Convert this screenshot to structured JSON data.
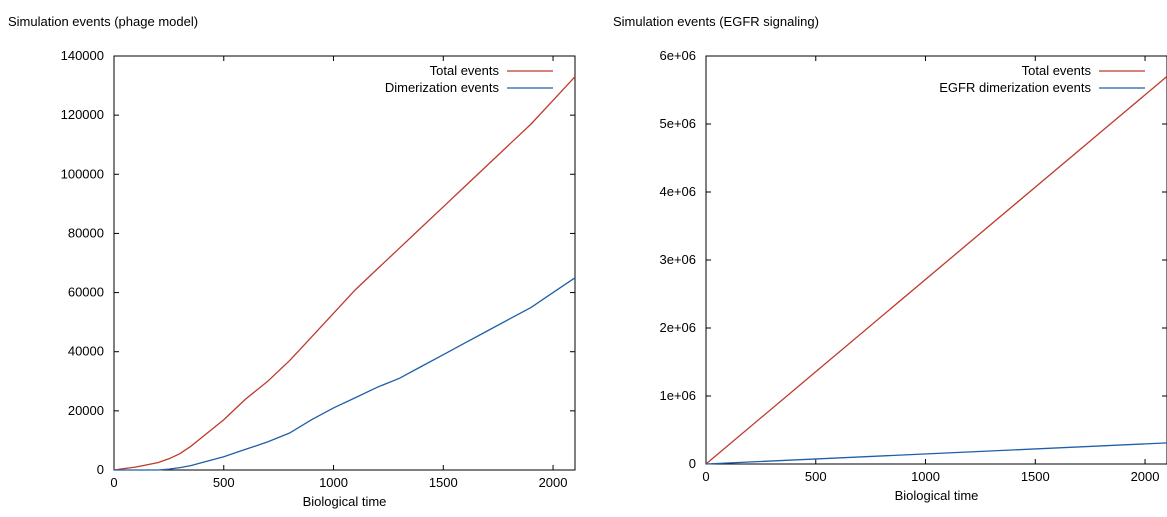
{
  "chart_data": [
    {
      "type": "line",
      "title": "Simulation events (phage model)",
      "xlabel": "Biological time",
      "ylabel": "",
      "xlim": [
        0,
        2100
      ],
      "ylim": [
        0,
        140000
      ],
      "xticks": [
        0,
        500,
        1000,
        1500,
        2000
      ],
      "yticks": [
        0,
        20000,
        40000,
        60000,
        80000,
        100000,
        120000,
        140000
      ],
      "xtick_labels": [
        "0",
        "500",
        "1000",
        "1500",
        "2000"
      ],
      "ytick_labels": [
        "0",
        "20000",
        "40000",
        "60000",
        "80000",
        "100000",
        "120000",
        "140000"
      ],
      "legend_position": "top-right",
      "series": [
        {
          "name": "Total events",
          "color": "#c0392b",
          "x": [
            0,
            100,
            200,
            250,
            300,
            350,
            400,
            450,
            500,
            550,
            600,
            700,
            800,
            850,
            900,
            1000,
            1100,
            1200,
            1300,
            1400,
            1500,
            1600,
            1700,
            1800,
            1900,
            2000,
            2100
          ],
          "y": [
            0,
            1000,
            2500,
            3800,
            5500,
            8000,
            11000,
            14000,
            17000,
            20500,
            24000,
            30000,
            37000,
            41000,
            45000,
            53000,
            61000,
            68000,
            75000,
            82000,
            89000,
            96000,
            103000,
            110000,
            117000,
            125000,
            133000
          ]
        },
        {
          "name": "Dimerization events",
          "color": "#1f5fa8",
          "x": [
            0,
            100,
            200,
            250,
            300,
            350,
            400,
            500,
            600,
            700,
            800,
            900,
            1000,
            1100,
            1200,
            1300,
            1400,
            1500,
            1600,
            1700,
            1800,
            1900,
            2000,
            2100
          ],
          "y": [
            0,
            0,
            0,
            300,
            800,
            1500,
            2500,
            4500,
            7000,
            9500,
            12500,
            17000,
            21000,
            24500,
            28000,
            31000,
            35000,
            39000,
            43000,
            47000,
            51000,
            55000,
            60000,
            65000
          ]
        }
      ]
    },
    {
      "type": "line",
      "title": "Simulation events (EGFR signaling)",
      "xlabel": "Biological time",
      "ylabel": "",
      "xlim": [
        0,
        2100
      ],
      "ylim": [
        0,
        6000000
      ],
      "xticks": [
        0,
        500,
        1000,
        1500,
        2000
      ],
      "yticks": [
        0,
        1000000,
        2000000,
        3000000,
        4000000,
        5000000,
        6000000
      ],
      "xtick_labels": [
        "0",
        "500",
        "1000",
        "1500",
        "2000"
      ],
      "ytick_labels": [
        "0",
        "1e+06",
        "2e+06",
        "3e+06",
        "4e+06",
        "5e+06",
        "6e+06"
      ],
      "legend_position": "top-right",
      "series": [
        {
          "name": "Total events",
          "color": "#c0392b",
          "x": [
            0,
            2100
          ],
          "y": [
            0,
            5700000
          ]
        },
        {
          "name": "EGFR dimerization events",
          "color": "#1f5fa8",
          "x": [
            0,
            2100
          ],
          "y": [
            0,
            310000
          ]
        }
      ]
    }
  ]
}
